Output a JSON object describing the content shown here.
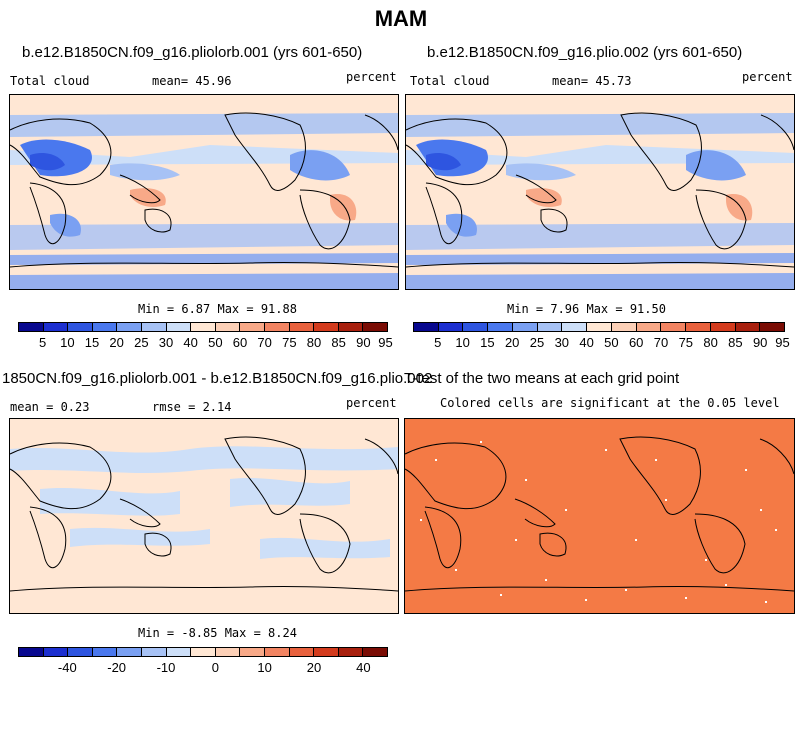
{
  "page": {
    "title": "MAM"
  },
  "panels": {
    "p1": {
      "title": "b.e12.B1850CN.f09_g16.pliolorb.001 (yrs 601-650)",
      "left": "Total cloud",
      "mean": "mean=  45.96",
      "units": "percent",
      "minmax": "Min =   6.87 Max =  91.88"
    },
    "p2": {
      "title": "b.e12.B1850CN.f09_g16.plio.002 (yrs 601-650)",
      "left": "Total cloud",
      "mean": "mean=  45.73",
      "units": "percent",
      "minmax": "Min =   7.96 Max =  91.50"
    },
    "p3": {
      "title": "1850CN.f09_g16.pliolorb.001 - b.e12.B1850CN.f09_g16.plio.002",
      "mean": "mean =   0.23",
      "rmse": "rmse =   2.14",
      "units": "percent",
      "minmax": "Min =  -8.85 Max =   8.24"
    },
    "p4": {
      "title": "T-test of the two means at each grid point",
      "subtitle": "Colored cells are significant at the 0.05 level"
    }
  },
  "colorbars": {
    "abs": {
      "colors": [
        "#08088f",
        "#1c2fd0",
        "#2e55e0",
        "#4a78ee",
        "#7aa0f2",
        "#a7c2f5",
        "#cddff8",
        "#ffe7d4",
        "#fcd0b7",
        "#f8a988",
        "#f28462",
        "#e8613d",
        "#d33b1d",
        "#a8200e",
        "#7a0c04"
      ],
      "labels": [
        "5",
        "10",
        "15",
        "20",
        "25",
        "30",
        "40",
        "50",
        "60",
        "70",
        "75",
        "80",
        "85",
        "90",
        "95"
      ]
    },
    "diff": {
      "colors": [
        "#08088f",
        "#1c2fd0",
        "#2e55e0",
        "#4a78ee",
        "#7aa0f2",
        "#a7c2f5",
        "#cddff8",
        "#ffe7d4",
        "#fcd0b7",
        "#f8a988",
        "#f28462",
        "#e8613d",
        "#d33b1d",
        "#a8200e",
        "#7a0c04"
      ],
      "labels": [
        "-40",
        "-20",
        "-10",
        "0",
        "10",
        "20",
        "40"
      ]
    }
  },
  "map_colors": {
    "p1_bg": "#ffe7d4",
    "p2_bg": "#ffe7d4",
    "p3_bg": "#ffe7d4",
    "p4_bg": "#f47a45"
  }
}
